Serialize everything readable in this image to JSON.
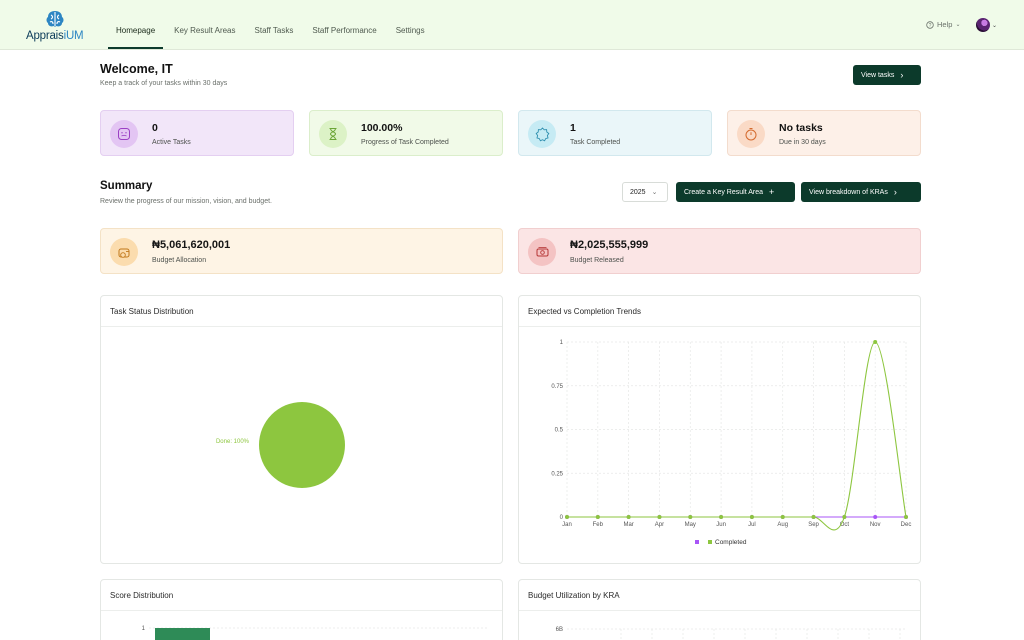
{
  "brand": {
    "prefix": "Apprais",
    "suffix": "iUM"
  },
  "nav": [
    {
      "label": "Homepage",
      "active": true
    },
    {
      "label": "Key Result Areas"
    },
    {
      "label": "Staff Tasks"
    },
    {
      "label": "Staff Performance"
    },
    {
      "label": "Settings"
    }
  ],
  "header": {
    "help_label": "Help"
  },
  "welcome": {
    "title": "Welcome, IT",
    "subtitle": "Keep a track of your tasks within 30 days",
    "view_tasks": "View tasks"
  },
  "stats": [
    {
      "value": "0",
      "label": "Active Tasks",
      "icon": "smile-face-icon",
      "bg": "#f2e6f9",
      "border": "#e4cff1",
      "icon_bg": "#e3c5f3",
      "icon_color": "#9b3fc4"
    },
    {
      "value": "100.00%",
      "label": "Progress of Task Completed",
      "icon": "hourglass-icon",
      "bg": "#f1fae8",
      "border": "#dbeecb",
      "icon_bg": "#dcf2c6",
      "icon_color": "#6aa535"
    },
    {
      "value": "1",
      "label": "Task Completed",
      "icon": "badge-check-icon",
      "bg": "#eaf6f9",
      "border": "#d2e8ee",
      "icon_bg": "#c6ebf4",
      "icon_color": "#2e8faf"
    },
    {
      "value": "No tasks",
      "label": "Due in 30 days",
      "icon": "timer-icon",
      "bg": "#fdf0e8",
      "border": "#f3dccd",
      "icon_bg": "#fadac6",
      "icon_color": "#d46a2d"
    }
  ],
  "summary": {
    "title": "Summary",
    "subtitle": "Review the progress of our mission, vision, and budget.",
    "year": "2025",
    "create_kra": "Create a Key Result Area",
    "breakdown": "View breakdown of KRAs"
  },
  "budget": [
    {
      "value": "₦5,061,620,001",
      "label": "Budget Allocation",
      "icon": "coins-icon",
      "bg": "#fef4e5",
      "border": "#f4e2c6",
      "icon_bg": "#fbdcae",
      "icon_color": "#c2791b"
    },
    {
      "value": "₦2,025,555,999",
      "label": "Budget Released",
      "icon": "banknote-icon",
      "bg": "#fbe5e5",
      "border": "#f1cfcf",
      "icon_bg": "#f4c3c3",
      "icon_color": "#b63636"
    }
  ],
  "panels": {
    "task_status": "Task Status Distribution",
    "trends": "Expected vs Completion Trends",
    "score": "Score Distribution",
    "budget_util": "Budget Utilization by KRA"
  },
  "chart_data": [
    {
      "type": "pie",
      "title": "Task Status Distribution",
      "slices": [
        {
          "label": "Done",
          "value": 100,
          "display": "Done: 100%",
          "color": "#8dc63f"
        }
      ]
    },
    {
      "type": "line",
      "title": "Expected vs Completion Trends",
      "categories": [
        "Jan",
        "Feb",
        "Mar",
        "Apr",
        "May",
        "Jun",
        "Jul",
        "Aug",
        "Sep",
        "Oct",
        "Nov",
        "Dec"
      ],
      "ylim": [
        0,
        1
      ],
      "yticks": [
        "1",
        "0.75",
        "0.5",
        "0.25",
        "0"
      ],
      "grid": true,
      "legend_position": "bottom",
      "series": [
        {
          "name": "",
          "color": "#a855f7",
          "values": [
            0,
            0,
            0,
            0,
            0,
            0,
            0,
            0,
            0,
            0,
            0,
            0
          ]
        },
        {
          "name": "Completed",
          "color": "#8dc63f",
          "values": [
            0,
            0,
            0,
            0,
            0,
            0,
            0,
            0,
            0,
            0,
            1,
            0
          ]
        }
      ]
    },
    {
      "type": "bar",
      "title": "Score Distribution",
      "yticks": [
        "1"
      ],
      "values": [
        1
      ],
      "color": "#2e8b57"
    },
    {
      "type": "bar",
      "title": "Budget Utilization by KRA",
      "yticks": [
        "6B"
      ]
    }
  ]
}
